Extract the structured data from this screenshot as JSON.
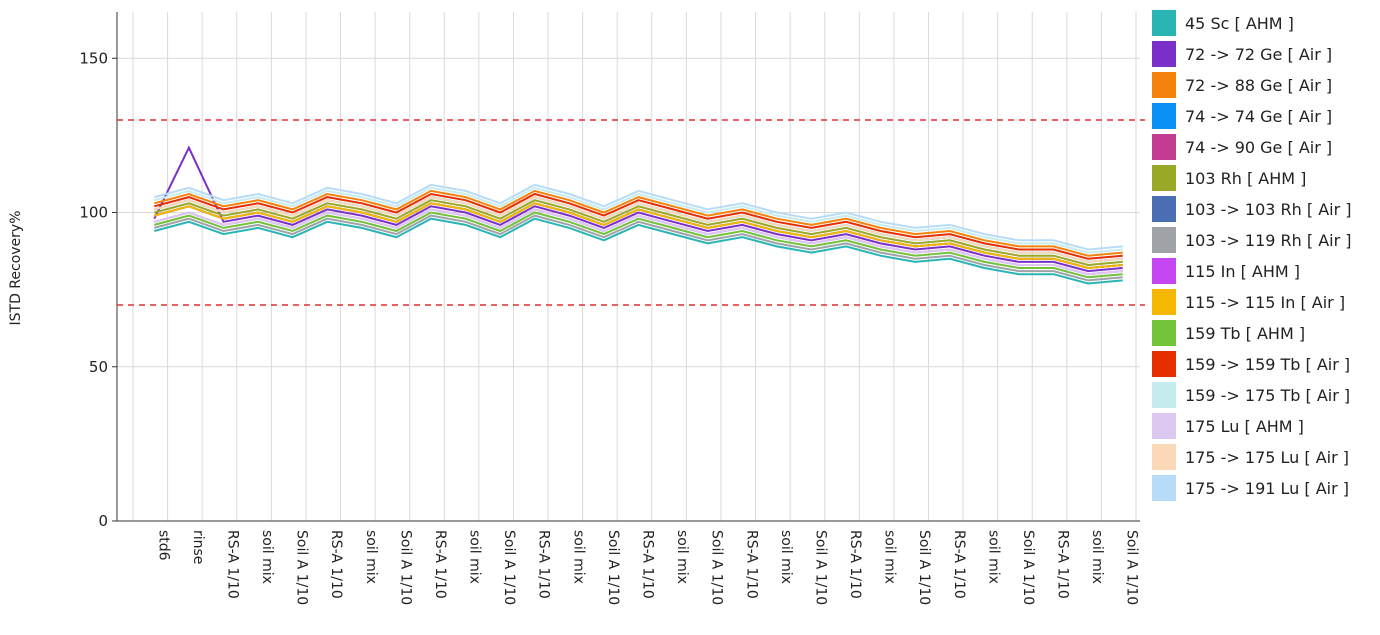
{
  "chart_data": {
    "type": "line",
    "y_label": "ISTD Recovery%",
    "categories": [
      "std6",
      "rinse",
      "RS-A 1/10",
      "soil mix",
      "Soil A 1/10",
      "RS-A 1/10",
      "soil mix",
      "Soil A 1/10",
      "RS-A 1/10",
      "soil mix",
      "Soil A 1/10",
      "RS-A 1/10",
      "soil mix",
      "Soil A 1/10",
      "RS-A 1/10",
      "soil mix",
      "Soil A 1/10",
      "RS-A 1/10",
      "soil mix",
      "Soil A 1/10",
      "RS-A 1/10",
      "soil mix",
      "Soil A 1/10",
      "RS-A 1/10",
      "soil mix",
      "Soil A 1/10",
      "RS-A 1/10",
      "soil mix",
      "Soil A 1/10"
    ],
    "ylim": [
      0,
      165
    ],
    "yticks": [
      0,
      50,
      100,
      150
    ],
    "grid": true,
    "reference_lines": [
      130,
      70
    ],
    "reference_color": "#e03030",
    "legend": "right",
    "series": [
      {
        "name": "45 Sc [ AHM ]",
        "color": "#2ab5b5",
        "values": [
          94,
          97,
          93,
          95,
          92,
          97,
          95,
          92,
          98,
          96,
          92,
          98,
          95,
          91,
          96,
          93,
          90,
          92,
          89,
          87,
          89,
          86,
          84,
          85,
          82,
          80,
          80,
          77,
          78
        ]
      },
      {
        "name": "72 -> 72 Ge [ Air ]",
        "color": "#7b2fc9",
        "values": [
          98,
          121,
          97,
          99,
          96,
          101,
          99,
          96,
          102,
          100,
          96,
          102,
          99,
          95,
          100,
          97,
          94,
          96,
          93,
          91,
          93,
          90,
          88,
          89,
          86,
          84,
          84,
          81,
          82
        ]
      },
      {
        "name": "72 -> 88 Ge [ Air ]",
        "color": "#f5820a",
        "values": [
          103,
          106,
          102,
          104,
          101,
          106,
          104,
          101,
          107,
          105,
          101,
          107,
          104,
          100,
          105,
          102,
          99,
          101,
          98,
          96,
          98,
          95,
          93,
          94,
          91,
          89,
          89,
          86,
          87
        ]
      },
      {
        "name": "74 -> 74 Ge [ Air ]",
        "color": "#0a8ff5",
        "values": [
          101,
          104,
          100,
          102,
          99,
          104,
          102,
          99,
          105,
          103,
          99,
          105,
          102,
          98,
          103,
          100,
          97,
          99,
          96,
          94,
          96,
          93,
          91,
          92,
          89,
          87,
          87,
          84,
          85
        ]
      },
      {
        "name": "74 -> 90 Ge [ Air ]",
        "color": "#c23d92",
        "values": [
          99,
          102,
          98,
          100,
          97,
          102,
          100,
          97,
          103,
          101,
          97,
          103,
          100,
          96,
          101,
          98,
          95,
          97,
          94,
          92,
          94,
          91,
          89,
          90,
          87,
          85,
          85,
          82,
          83
        ]
      },
      {
        "name": "103 Rh [ AHM ]",
        "color": "#99a827",
        "values": [
          100,
          103,
          99,
          101,
          98,
          103,
          101,
          98,
          104,
          102,
          98,
          104,
          101,
          97,
          102,
          99,
          96,
          98,
          95,
          93,
          95,
          92,
          90,
          91,
          88,
          86,
          86,
          83,
          84
        ]
      },
      {
        "name": "103 -> 103 Rh [ Air ]",
        "color": "#4a6fb5",
        "values": [
          99,
          102,
          98,
          100,
          97,
          102,
          100,
          97,
          103,
          101,
          97,
          103,
          100,
          96,
          101,
          98,
          95,
          97,
          94,
          92,
          94,
          91,
          89,
          90,
          87,
          85,
          85,
          82,
          83
        ]
      },
      {
        "name": "103 -> 119 Rh [ Air ]",
        "color": "#9fa3a8",
        "values": [
          95,
          98,
          94,
          96,
          93,
          98,
          96,
          93,
          99,
          97,
          93,
          99,
          96,
          92,
          97,
          94,
          91,
          93,
          90,
          88,
          90,
          87,
          85,
          86,
          83,
          81,
          81,
          78,
          79
        ]
      },
      {
        "name": "115 In [ AHM ]",
        "color": "#c447f2",
        "values": [
          97,
          100,
          96,
          98,
          95,
          100,
          98,
          95,
          101,
          99,
          95,
          101,
          98,
          94,
          99,
          96,
          93,
          95,
          92,
          90,
          92,
          89,
          87,
          88,
          85,
          83,
          83,
          80,
          81
        ]
      },
      {
        "name": "115 -> 115 In [ Air ]",
        "color": "#f5b800",
        "values": [
          99,
          102,
          98,
          100,
          97,
          102,
          100,
          97,
          103,
          101,
          97,
          103,
          100,
          96,
          101,
          98,
          95,
          97,
          94,
          92,
          94,
          91,
          89,
          90,
          87,
          85,
          85,
          82,
          83
        ]
      },
      {
        "name": "159 Tb [ AHM ]",
        "color": "#72c23a",
        "values": [
          96,
          99,
          95,
          97,
          94,
          99,
          97,
          94,
          100,
          98,
          94,
          100,
          97,
          93,
          98,
          95,
          92,
          94,
          91,
          89,
          91,
          88,
          86,
          87,
          84,
          82,
          82,
          79,
          80
        ]
      },
      {
        "name": "159 -> 159 Tb [ Air ]",
        "color": "#e62e00",
        "values": [
          102,
          105,
          101,
          103,
          100,
          105,
          103,
          100,
          106,
          104,
          100,
          106,
          103,
          99,
          104,
          101,
          98,
          100,
          97,
          95,
          97,
          94,
          92,
          93,
          90,
          88,
          88,
          85,
          86
        ]
      },
      {
        "name": "159 -> 175 Tb [ Air ]",
        "color": "#c7ecf0",
        "values": [
          104,
          107,
          103,
          105,
          102,
          107,
          105,
          102,
          108,
          106,
          102,
          108,
          105,
          101,
          106,
          103,
          100,
          102,
          99,
          97,
          99,
          96,
          94,
          95,
          92,
          90,
          90,
          87,
          88
        ]
      },
      {
        "name": "175 Lu [ AHM ]",
        "color": "#dcc8f0",
        "values": [
          97,
          100,
          96,
          98,
          95,
          100,
          98,
          95,
          101,
          99,
          95,
          101,
          98,
          94,
          99,
          96,
          93,
          95,
          92,
          90,
          92,
          89,
          87,
          88,
          85,
          83,
          83,
          80,
          81
        ]
      },
      {
        "name": "175 -> 175 Lu [ Air ]",
        "color": "#fbd9b8",
        "values": [
          101,
          104,
          100,
          102,
          99,
          104,
          102,
          99,
          105,
          103,
          99,
          105,
          102,
          98,
          103,
          100,
          97,
          99,
          96,
          94,
          96,
          93,
          91,
          92,
          89,
          87,
          87,
          84,
          85
        ]
      },
      {
        "name": "175 -> 191 Lu [ Air ]",
        "color": "#b8dcf7",
        "values": [
          105,
          108,
          104,
          106,
          103,
          108,
          106,
          103,
          109,
          107,
          103,
          109,
          106,
          102,
          107,
          104,
          101,
          103,
          100,
          98,
          100,
          97,
          95,
          96,
          93,
          91,
          91,
          88,
          89
        ]
      }
    ]
  }
}
